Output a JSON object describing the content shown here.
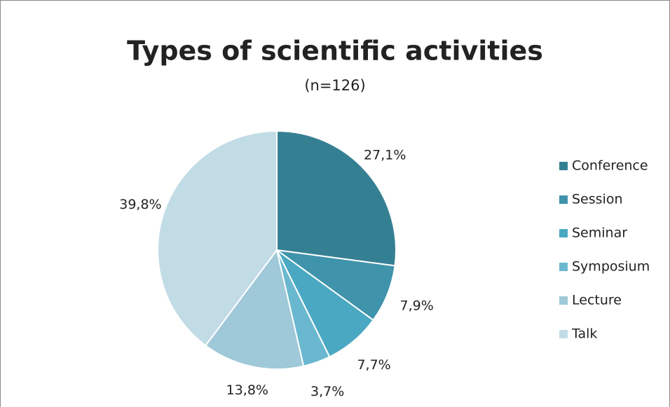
{
  "chart_data": {
    "type": "pie",
    "title": "Types of scientific activities",
    "subtitle": "(n=126)",
    "categories": [
      "Conference",
      "Session",
      "Seminar",
      "Symposium",
      "Lecture",
      "Talk"
    ],
    "values": [
      27.1,
      7.9,
      7.7,
      3.7,
      13.8,
      39.8
    ],
    "value_labels": [
      "27,1%",
      "7,9%",
      "7,7%",
      "3,7%",
      "13,8%",
      "39,8%"
    ],
    "colors": [
      "#357f93",
      "#3f93ab",
      "#4aa8c2",
      "#6ab8cf",
      "#9fc8d8",
      "#c2dce6"
    ],
    "legend": "right"
  }
}
